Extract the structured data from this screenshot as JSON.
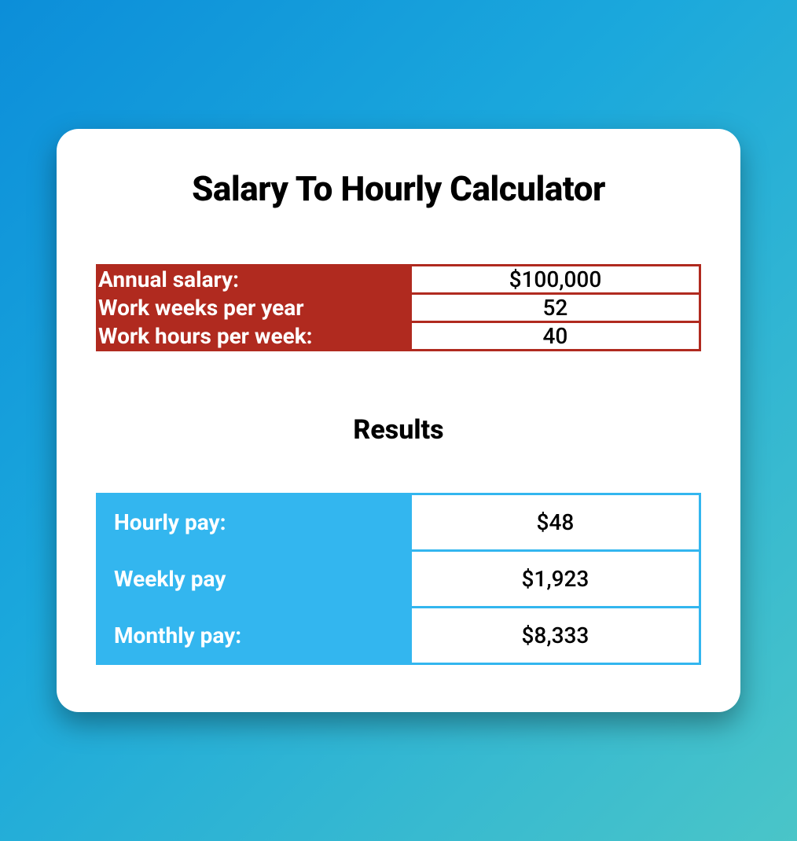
{
  "title": "Salary To Hourly Calculator",
  "inputs": {
    "header_bg_color": "#b02a1f",
    "header_text_color": "#ffffff",
    "value_bg_color": "#ffffff",
    "value_text_color": "#000000",
    "border_color": "#b02a1f",
    "rows": [
      {
        "label": "Annual salary:",
        "value": "$100,000"
      },
      {
        "label": "Work weeks per year",
        "value": "52"
      },
      {
        "label": "Work hours per week:",
        "value": "40"
      }
    ]
  },
  "results_heading": "Results",
  "results": {
    "header_bg_color": "#33b6ef",
    "header_text_color": "#ffffff",
    "value_bg_color": "#ffffff",
    "value_text_color": "#000000",
    "border_color": "#33b6ef",
    "rows": [
      {
        "label": "Hourly pay:",
        "value": "$48"
      },
      {
        "label": "Weekly pay",
        "value": "$1,923"
      },
      {
        "label": "Monthly pay:",
        "value": "$8,333"
      }
    ]
  },
  "styling": {
    "page_bg_gradient_start": "#0c8ed9",
    "page_bg_gradient_mid": "#1ba8dc",
    "page_bg_gradient_end": "#4ac5c8",
    "card_bg_color": "#ffffff",
    "card_border_radius": 28,
    "title_fontsize": 44,
    "title_color": "#000000",
    "label_fontsize": 28,
    "value_fontsize": 28,
    "results_heading_fontsize": 34,
    "font_family": "-apple-system, sans-serif"
  }
}
